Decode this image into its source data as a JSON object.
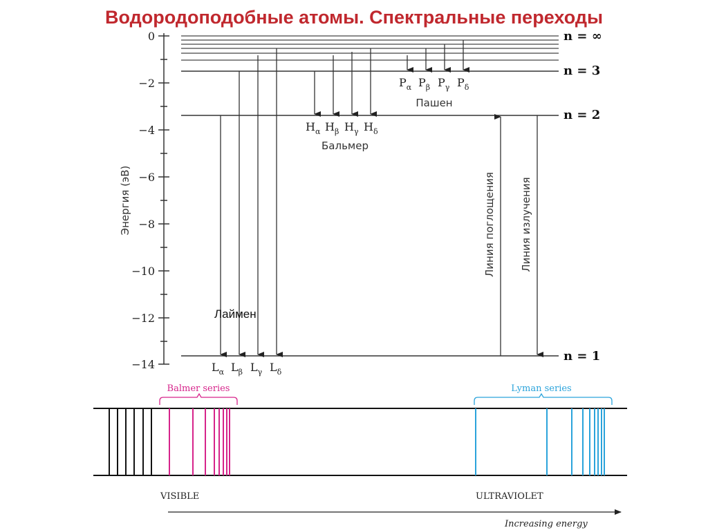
{
  "title": "Водородоподобные атомы. Спектральные переходы",
  "y_axis": {
    "label": "Энергия (эВ)",
    "ticks": [
      "0",
      "−2",
      "−4",
      "−6",
      "−8",
      "−10",
      "−12",
      "−14"
    ]
  },
  "levels": {
    "n_inf": "n = ∞",
    "n3": "n = 3",
    "n2": "n = 2",
    "n1": "n = 1"
  },
  "series": {
    "paschen": {
      "name": "Пашен",
      "lines": [
        "P",
        "P",
        "P",
        "P"
      ],
      "subs": [
        "α",
        "β",
        "γ",
        "δ"
      ]
    },
    "balmer": {
      "name": "Бальмер",
      "lines": [
        "H",
        "H",
        "H",
        "H"
      ],
      "subs": [
        "α",
        "β",
        "γ",
        "δ"
      ]
    },
    "lyman": {
      "name": "Лаймен",
      "lines": [
        "L",
        "L",
        "L",
        "L"
      ],
      "subs": [
        "α",
        "β",
        "γ",
        "δ"
      ]
    }
  },
  "arrows": {
    "absorption": "Линия поглощения",
    "emission": "Линия излучения"
  },
  "spectrum": {
    "balmer_label": "Balmer series",
    "lyman_label": "Lyman series",
    "visible": "VISIBLE",
    "ultraviolet": "ULTRAVIOLET",
    "increasing_energy": "Increasing energy",
    "colors": {
      "balmer": "#d6238a",
      "lyman": "#2aa3db",
      "black": "#111111"
    }
  }
}
